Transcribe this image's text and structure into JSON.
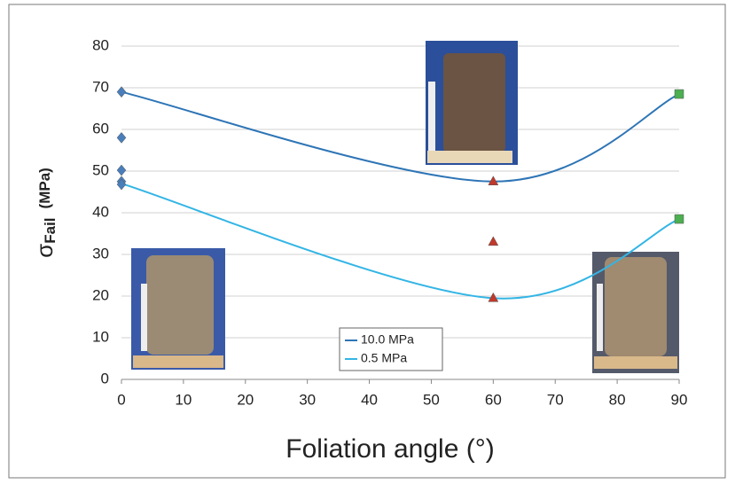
{
  "chart_data": {
    "type": "line",
    "x_label": "Foliation angle (°)",
    "y_label": {
      "symbol": "σ",
      "subscript": "Fail",
      "unit": "(MPa)"
    },
    "xlim": [
      0,
      90
    ],
    "xticks": [
      0,
      10,
      20,
      30,
      40,
      50,
      60,
      70,
      80,
      90
    ],
    "ylim": [
      0,
      80
    ],
    "yticks": [
      0,
      10,
      20,
      30,
      40,
      50,
      60,
      70,
      80
    ],
    "grid": true,
    "series": [
      {
        "name": "10.0 MPa",
        "color": "#2e75b6",
        "x": [
          0,
          60,
          90
        ],
        "values": [
          69,
          47.5,
          68.5
        ]
      },
      {
        "name": "0.5 MPa",
        "color": "#33b5e5",
        "x": [
          0,
          60,
          90
        ],
        "values": [
          47,
          19.5,
          38.5
        ]
      }
    ],
    "markers": [
      {
        "shape": "diamond",
        "color": "#4a7ebb",
        "x": [
          0,
          0,
          0,
          0,
          0
        ],
        "values": [
          69,
          58,
          50.2,
          47.5,
          46.8
        ]
      },
      {
        "shape": "triangle",
        "color": "#c0392b",
        "x": [
          60,
          60,
          60
        ],
        "values": [
          47.5,
          33,
          19.5
        ]
      },
      {
        "shape": "square",
        "color": "#4caf50",
        "x": [
          90,
          90
        ],
        "values": [
          68.5,
          38.5
        ]
      }
    ]
  }
}
